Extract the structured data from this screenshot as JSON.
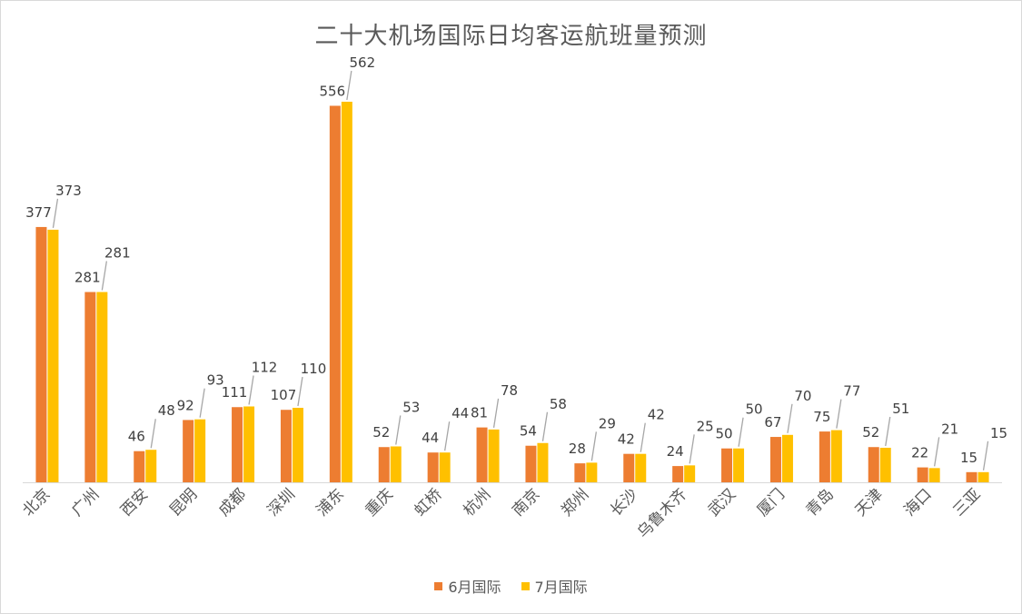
{
  "chart_data": {
    "type": "bar",
    "title": "二十大机场国际日均客运航班量预测",
    "categories": [
      "北京",
      "广州",
      "西安",
      "昆明",
      "成都",
      "深圳",
      "浦东",
      "重庆",
      "虹桥",
      "杭州",
      "南京",
      "郑州",
      "长沙",
      "乌鲁木齐",
      "武汉",
      "厦门",
      "青岛",
      "天津",
      "海口",
      "三亚"
    ],
    "series": [
      {
        "name": "6月国际",
        "color": "#ED7D31",
        "values": [
          377,
          281,
          46,
          92,
          111,
          107,
          556,
          52,
          44,
          81,
          54,
          28,
          42,
          24,
          50,
          67,
          75,
          52,
          22,
          15
        ]
      },
      {
        "name": "7月国际",
        "color": "#FFC000",
        "values": [
          373,
          281,
          48,
          93,
          112,
          110,
          562,
          53,
          44,
          78,
          58,
          29,
          42,
          25,
          50,
          70,
          77,
          51,
          21,
          15
        ]
      }
    ],
    "ylim": [
      0,
      600
    ],
    "grid": false,
    "legend_position": "bottom"
  }
}
